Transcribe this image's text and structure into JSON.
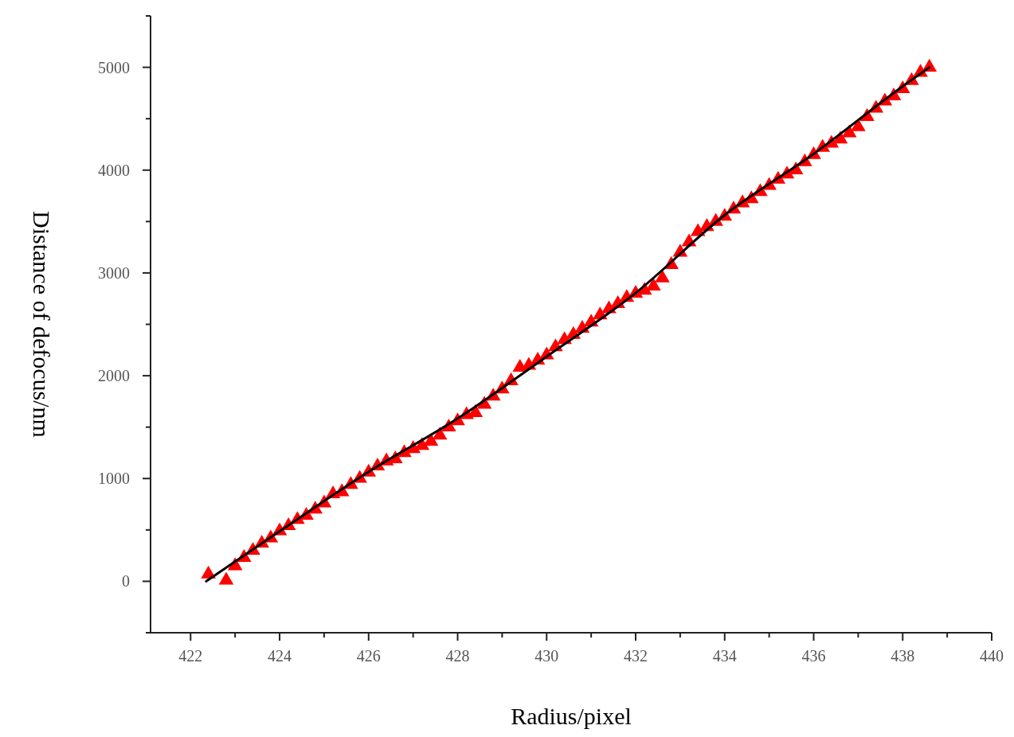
{
  "chart_data": {
    "type": "scatter",
    "xlabel": "Radius/pixel",
    "ylabel": "Distance of defocus/nm",
    "xlim": [
      421.1,
      440
    ],
    "ylim": [
      -500,
      5500
    ],
    "xticks": [
      422,
      {
        "value": 423,
        "label": null
      },
      424,
      {
        "value": 425,
        "label": null
      },
      426,
      {
        "value": 427,
        "label": null
      },
      428,
      {
        "value": 429,
        "label": null
      },
      430,
      {
        "value": 431,
        "label": null
      },
      432,
      {
        "value": 433,
        "label": null
      },
      434,
      {
        "value": 435,
        "label": null
      },
      436,
      {
        "value": 437,
        "label": null
      },
      438,
      {
        "value": 439,
        "label": null
      },
      440
    ],
    "yticks": [
      {
        "value": -500,
        "label": null
      },
      0,
      {
        "value": 500,
        "label": null
      },
      1000,
      {
        "value": 1500,
        "label": null
      },
      2000,
      {
        "value": 2500,
        "label": null
      },
      3000,
      {
        "value": 3500,
        "label": null
      },
      4000,
      {
        "value": 4500,
        "label": null
      },
      5000,
      {
        "value": 5500,
        "label": null
      }
    ],
    "marker": "triangle",
    "grid": false,
    "series": [
      {
        "color": "#ff0000",
        "x": [
          422.4,
          422.8,
          423.0,
          423.2,
          423.4,
          423.6,
          423.8,
          424.0,
          424.2,
          424.4,
          424.6,
          424.8,
          425.0,
          425.2,
          425.4,
          425.6,
          425.8,
          426.0,
          426.2,
          426.4,
          426.6,
          426.8,
          427.0,
          427.2,
          427.4,
          427.6,
          427.8,
          428.0,
          428.2,
          428.4,
          428.6,
          428.8,
          429.0,
          429.2,
          429.4,
          429.6,
          429.8,
          430.0,
          430.2,
          430.4,
          430.6,
          430.8,
          431.0,
          431.2,
          431.4,
          431.6,
          431.8,
          432.0,
          432.2,
          432.4,
          432.6,
          432.8,
          433.0,
          433.2,
          433.4,
          433.6,
          433.8,
          434.0,
          434.2,
          434.4,
          434.6,
          434.8,
          435.0,
          435.2,
          435.4,
          435.6,
          435.8,
          436.0,
          436.2,
          436.4,
          436.6,
          436.8,
          437.0,
          437.2,
          437.4,
          437.6,
          437.8,
          438.0,
          438.2,
          438.4,
          438.6
        ],
        "values": [
          70,
          10,
          150,
          230,
          300,
          370,
          420,
          490,
          540,
          600,
          640,
          700,
          760,
          850,
          870,
          940,
          1000,
          1060,
          1120,
          1170,
          1190,
          1250,
          1290,
          1320,
          1360,
          1420,
          1500,
          1560,
          1620,
          1640,
          1720,
          1800,
          1870,
          1950,
          2080,
          2100,
          2150,
          2200,
          2280,
          2350,
          2400,
          2460,
          2520,
          2590,
          2650,
          2700,
          2760,
          2800,
          2830,
          2870,
          2950,
          3080,
          3200,
          3300,
          3400,
          3450,
          3500,
          3550,
          3620,
          3680,
          3720,
          3790,
          3850,
          3910,
          3960,
          4000,
          4080,
          4150,
          4220,
          4260,
          4300,
          4360,
          4420,
          4520,
          4600,
          4670,
          4720,
          4790,
          4870,
          4950,
          5000
        ]
      },
      {
        "type": "line",
        "color": "#000000",
        "marker": "none",
        "x": [
          422.35,
          424,
          426,
          428,
          430,
          432,
          434,
          436,
          438,
          438.6
        ],
        "values": [
          0,
          487,
          1066,
          1584,
          2187,
          2805,
          3563,
          4158,
          4815,
          5000
        ]
      }
    ]
  }
}
